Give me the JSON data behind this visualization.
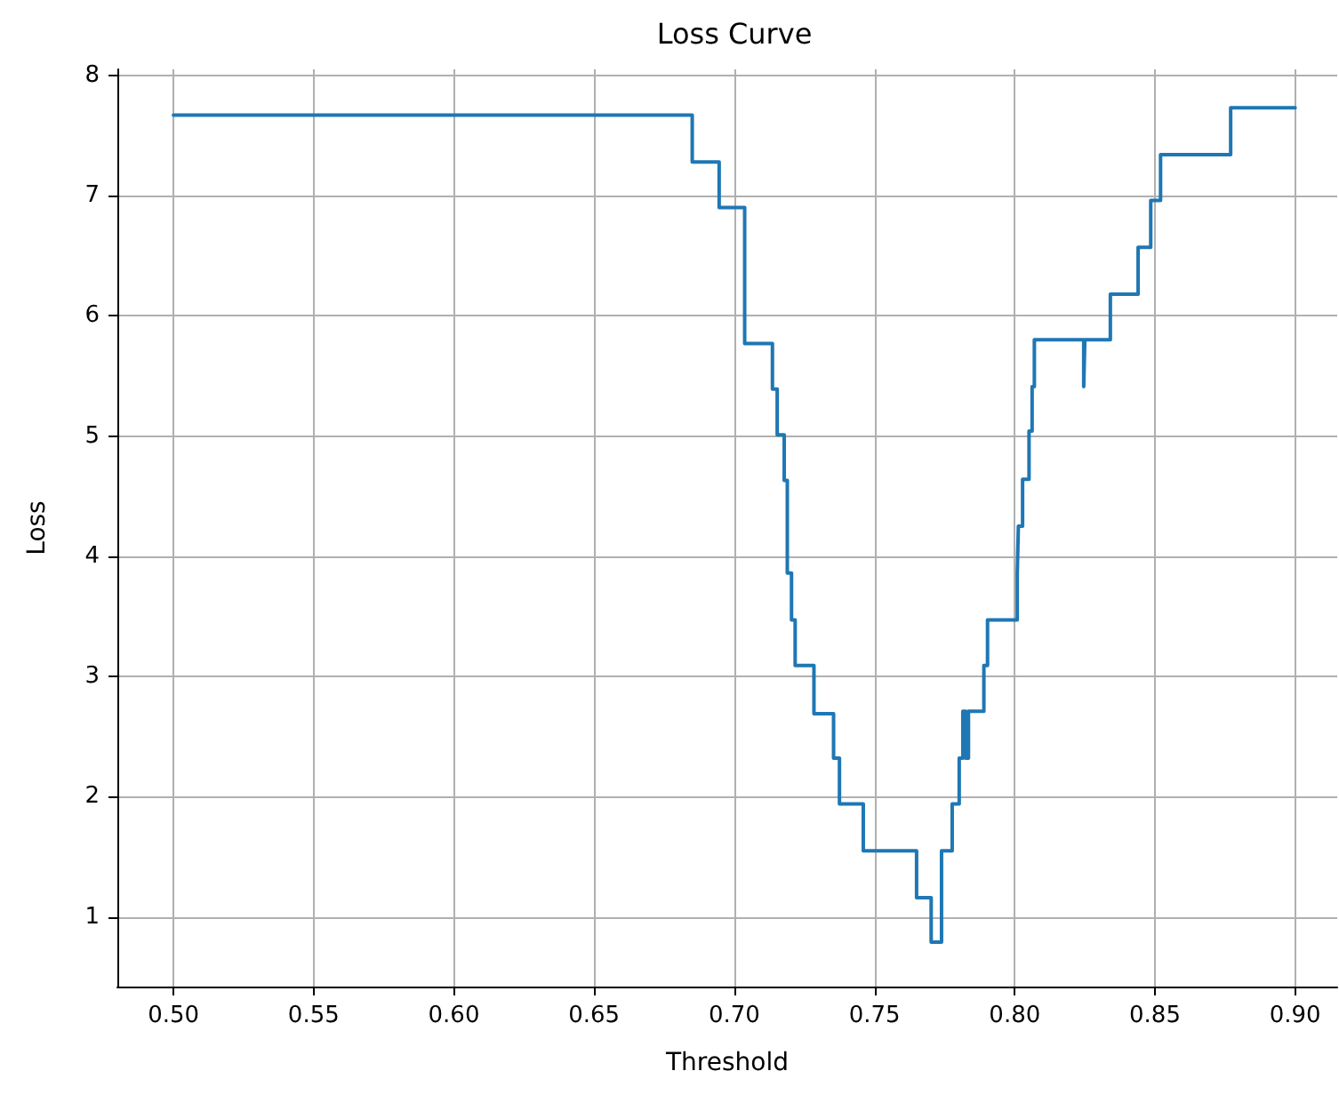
{
  "chart_data": {
    "type": "step",
    "title": "Loss Curve",
    "xlabel": "Threshold",
    "ylabel": "Loss",
    "x": [
      0.5,
      0.685,
      0.6946,
      0.7037,
      0.7136,
      0.7153,
      0.7178,
      0.7189,
      0.7204,
      0.7217,
      0.7284,
      0.7354,
      0.7375,
      0.746,
      0.765,
      0.7702,
      0.7739,
      0.7777,
      0.7802,
      0.7815,
      0.7825,
      0.7835,
      0.789,
      0.7903,
      0.8009,
      0.8013,
      0.8028,
      0.8051,
      0.8062,
      0.807,
      0.8246,
      0.825,
      0.8341,
      0.844,
      0.8485,
      0.852,
      0.877,
      0.9
    ],
    "series": [
      {
        "color": "#1f77b4",
        "values": [
          7.67,
          7.28,
          6.9,
          5.77,
          5.39,
          5.01,
          4.63,
          3.86,
          3.47,
          3.09,
          2.69,
          2.32,
          1.94,
          1.55,
          1.16,
          0.79,
          1.55,
          1.94,
          2.32,
          2.71,
          2.32,
          2.71,
          3.09,
          3.47,
          3.86,
          4.25,
          4.64,
          5.04,
          5.41,
          5.8,
          5.41,
          5.8,
          6.18,
          6.57,
          6.96,
          7.34,
          7.73,
          7.73
        ]
      }
    ],
    "xlim": [
      0.48,
      0.915
    ],
    "xticks": [
      {
        "value": 0.5,
        "label": "0.50"
      },
      {
        "value": 0.55,
        "label": "0.55"
      },
      {
        "value": 0.6,
        "label": "0.60"
      },
      {
        "value": 0.65,
        "label": "0.65"
      },
      {
        "value": 0.7,
        "label": "0.70"
      },
      {
        "value": 0.75,
        "label": "0.75"
      },
      {
        "value": 0.8,
        "label": "0.80"
      },
      {
        "value": 0.85,
        "label": "0.85"
      },
      {
        "value": 0.9,
        "label": "0.90"
      }
    ],
    "ylim": [
      0.42,
      8.05
    ],
    "yticks": [
      1,
      2,
      3,
      4,
      5,
      6,
      7,
      8
    ],
    "grid": true,
    "marker": "none",
    "line_style": "solid"
  }
}
